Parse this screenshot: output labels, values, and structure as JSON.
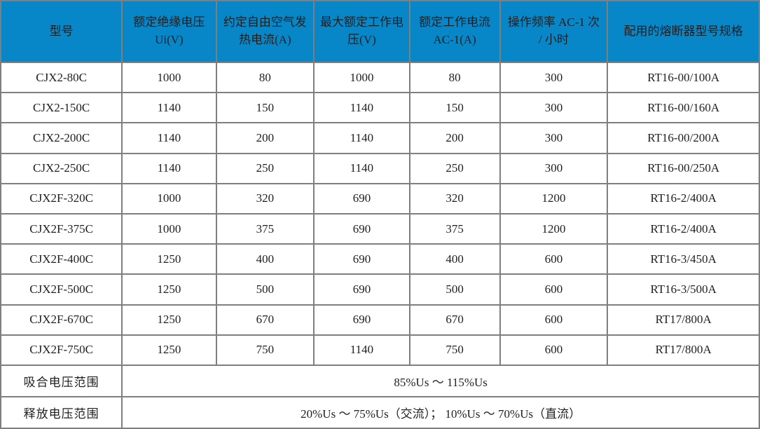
{
  "colors": {
    "header_bg": "#0887c8",
    "header_text": "#ffffff",
    "grid_line": "#7f7f7f",
    "body_text": "#1f1f1f"
  },
  "table": {
    "headers": [
      "型号",
      "额定绝缘电压 Ui(V)",
      "约定自由空气发热电流(A)",
      "最大额定工作电压(V)",
      "额定工作电流 AC-1(A)",
      "操作频率 AC-1 次 / 小时",
      "配用的熔断器型号规格"
    ],
    "rows": [
      [
        "CJX2-80C",
        "1000",
        "80",
        "1000",
        "80",
        "300",
        "RT16-00/100A"
      ],
      [
        "CJX2-150C",
        "1140",
        "150",
        "1140",
        "150",
        "300",
        "RT16-00/160A"
      ],
      [
        "CJX2-200C",
        "1140",
        "200",
        "1140",
        "200",
        "300",
        "RT16-00/200A"
      ],
      [
        "CJX2-250C",
        "1140",
        "250",
        "1140",
        "250",
        "300",
        "RT16-00/250A"
      ],
      [
        "CJX2F-320C",
        "1000",
        "320",
        "690",
        "320",
        "1200",
        "RT16-2/400A"
      ],
      [
        "CJX2F-375C",
        "1000",
        "375",
        "690",
        "375",
        "1200",
        "RT16-2/400A"
      ],
      [
        "CJX2F-400C",
        "1250",
        "400",
        "690",
        "400",
        "600",
        "RT16-3/450A"
      ],
      [
        "CJX2F-500C",
        "1250",
        "500",
        "690",
        "500",
        "600",
        "RT16-3/500A"
      ],
      [
        "CJX2F-670C",
        "1250",
        "670",
        "690",
        "670",
        "600",
        "RT17/800A"
      ],
      [
        "CJX2F-750C",
        "1250",
        "750",
        "1140",
        "750",
        "600",
        "RT17/800A"
      ]
    ],
    "footer": [
      {
        "label": "吸合电压范围",
        "value": "85%Us ～ 115%Us"
      },
      {
        "label": "释放电压范围",
        "value": "20%Us ～ 75%Us（交流）； 10%Us ～ 70%Us（直流）"
      }
    ]
  }
}
